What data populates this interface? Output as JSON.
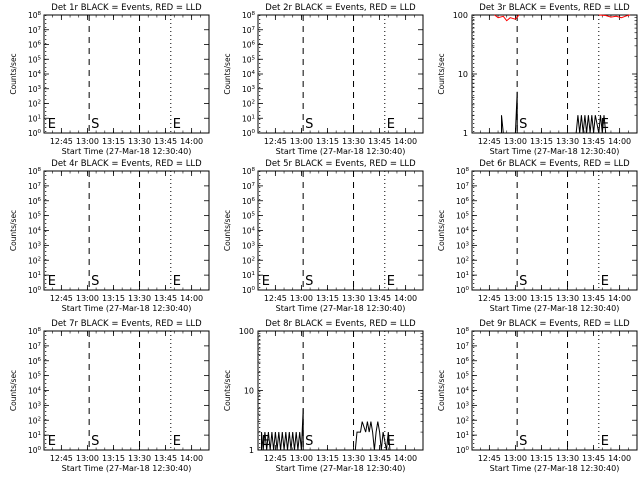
{
  "page": {
    "background": "#ffffff"
  },
  "chart_data": [
    {
      "type": "line",
      "title": "Det 1r BLACK = Events, RED = LLD",
      "xlabel": "Start Time (27-Mar-18 12:30:40)",
      "ylabel": "Counts/sec",
      "xlim": [
        "12:35",
        "14:10"
      ],
      "x_tick_labels": [
        "12:45",
        "13:00",
        "13:15",
        "13:30",
        "13:45",
        "14:00"
      ],
      "y_scale": "log",
      "ylim": [
        1,
        100000000.0
      ],
      "y_tick_labels": [
        "10^0",
        "10^1",
        "10^2",
        "10^3",
        "10^4",
        "10^5",
        "10^6",
        "10^7",
        "10^8"
      ],
      "markers": [
        {
          "label": "E",
          "time": "12:36",
          "style": "dotted"
        },
        {
          "label": "S",
          "time": "13:01",
          "style": "dashed"
        },
        {
          "label": "",
          "time": "13:30",
          "style": "dashed"
        },
        {
          "label": "E",
          "time": "13:48",
          "style": "dotted"
        }
      ],
      "series": [],
      "colors": {
        "events": "#000000",
        "lld": "#ff0000"
      }
    },
    {
      "type": "line",
      "title": "Det 2r BLACK = Events, RED = LLD",
      "xlabel": "Start Time (27-Mar-18 12:30:40)",
      "ylabel": "Counts/sec",
      "xlim": [
        "12:35",
        "14:10"
      ],
      "x_tick_labels": [
        "12:45",
        "13:00",
        "13:15",
        "13:30",
        "13:45",
        "14:00"
      ],
      "y_scale": "log",
      "ylim": [
        1,
        100000000.0
      ],
      "y_tick_labels": [
        "10^0",
        "10^1",
        "10^2",
        "10^3",
        "10^4",
        "10^5",
        "10^6",
        "10^7",
        "10^8"
      ],
      "markers": [
        {
          "label": "",
          "time": "12:36",
          "style": "dotted"
        },
        {
          "label": "S",
          "time": "13:01",
          "style": "dashed"
        },
        {
          "label": "",
          "time": "13:30",
          "style": "dashed"
        },
        {
          "label": "E",
          "time": "13:48",
          "style": "dotted"
        }
      ],
      "series": [],
      "colors": {
        "events": "#000000",
        "lld": "#ff0000"
      }
    },
    {
      "type": "line",
      "title": "Det 3r BLACK = Events, RED = LLD",
      "xlabel": "Start Time (27-Mar-18 12:30:40)",
      "ylabel": "Counts/sec",
      "xlim": [
        "12:35",
        "14:10"
      ],
      "x_tick_labels": [
        "12:45",
        "13:00",
        "13:15",
        "13:30",
        "13:45",
        "14:00"
      ],
      "y_scale": "log",
      "ylim": [
        1,
        100
      ],
      "y_tick_labels": [
        "1",
        "10",
        "100"
      ],
      "markers": [
        {
          "label": "",
          "time": "12:36",
          "style": "dotted"
        },
        {
          "label": "S",
          "time": "13:01",
          "style": "dashed"
        },
        {
          "label": "",
          "time": "13:30",
          "style": "dashed"
        },
        {
          "label": "E",
          "time": "13:48",
          "style": "dotted"
        }
      ],
      "series": [
        {
          "color": "#000000",
          "points": [
            [
              "12:52",
              1
            ],
            [
              "12:52",
              2
            ],
            [
              "12:53",
              1
            ],
            [
              "13:00",
              1
            ],
            [
              "13:01",
              5
            ],
            [
              "13:01",
              1
            ],
            [
              "13:35",
              1
            ],
            [
              "13:36",
              2
            ],
            [
              "13:37",
              1
            ],
            [
              "13:38",
              2
            ],
            [
              "13:39",
              1
            ],
            [
              "13:40",
              2
            ],
            [
              "13:41",
              1
            ],
            [
              "13:42",
              2
            ],
            [
              "13:43",
              1
            ],
            [
              "13:44",
              2
            ],
            [
              "13:45",
              1
            ],
            [
              "13:46",
              2
            ],
            [
              "13:48",
              1
            ],
            [
              "13:49",
              2
            ],
            [
              "13:50",
              1
            ],
            [
              "13:51",
              2
            ],
            [
              "13:52",
              1
            ]
          ]
        },
        {
          "color": "#ff0000",
          "points": [
            [
              "12:48",
              100
            ],
            [
              "12:50",
              90
            ],
            [
              "12:53",
              95
            ],
            [
              "12:55",
              80
            ],
            [
              "12:57",
              90
            ],
            [
              "13:00",
              85
            ],
            [
              "13:02",
              100
            ]
          ]
        },
        {
          "color": "#ff0000",
          "points": [
            [
              "13:48",
              100
            ],
            [
              "13:52",
              98
            ],
            [
              "13:55",
              92
            ],
            [
              "13:58",
              95
            ],
            [
              "14:01",
              90
            ],
            [
              "14:04",
              97
            ],
            [
              "14:06",
              100
            ]
          ]
        }
      ],
      "colors": {
        "events": "#000000",
        "lld": "#ff0000"
      }
    },
    {
      "type": "line",
      "title": "Det 4r BLACK = Events, RED = LLD",
      "xlabel": "Start Time (27-Mar-18 12:30:40)",
      "ylabel": "Counts/sec",
      "xlim": [
        "12:35",
        "14:10"
      ],
      "x_tick_labels": [
        "12:45",
        "13:00",
        "13:15",
        "13:30",
        "13:45",
        "14:00"
      ],
      "y_scale": "log",
      "ylim": [
        1,
        100000000.0
      ],
      "y_tick_labels": [
        "10^0",
        "10^1",
        "10^2",
        "10^3",
        "10^4",
        "10^5",
        "10^6",
        "10^7",
        "10^8"
      ],
      "markers": [
        {
          "label": "E",
          "time": "12:36",
          "style": "dotted"
        },
        {
          "label": "S",
          "time": "13:01",
          "style": "dashed"
        },
        {
          "label": "",
          "time": "13:30",
          "style": "dashed"
        },
        {
          "label": "E",
          "time": "13:48",
          "style": "dotted"
        }
      ],
      "series": [],
      "colors": {
        "events": "#000000",
        "lld": "#ff0000"
      }
    },
    {
      "type": "line",
      "title": "Det 5r BLACK = Events, RED = LLD",
      "xlabel": "Start Time (27-Mar-18 12:30:40)",
      "ylabel": "Counts/sec",
      "xlim": [
        "12:35",
        "14:10"
      ],
      "x_tick_labels": [
        "12:45",
        "13:00",
        "13:15",
        "13:30",
        "13:45",
        "14:00"
      ],
      "y_scale": "log",
      "ylim": [
        1,
        100000000.0
      ],
      "y_tick_labels": [
        "10^0",
        "10^1",
        "10^2",
        "10^3",
        "10^4",
        "10^5",
        "10^6",
        "10^7",
        "10^8"
      ],
      "markers": [
        {
          "label": "E",
          "time": "12:36",
          "style": "dotted"
        },
        {
          "label": "S",
          "time": "13:01",
          "style": "dashed"
        },
        {
          "label": "",
          "time": "13:30",
          "style": "dashed"
        },
        {
          "label": "E",
          "time": "13:48",
          "style": "dotted"
        }
      ],
      "series": [],
      "colors": {
        "events": "#000000",
        "lld": "#ff0000"
      }
    },
    {
      "type": "line",
      "title": "Det 6r BLACK = Events, RED = LLD",
      "xlabel": "Start Time (27-Mar-18 12:30:40)",
      "ylabel": "Counts/sec",
      "xlim": [
        "12:35",
        "14:10"
      ],
      "x_tick_labels": [
        "12:45",
        "13:00",
        "13:15",
        "13:30",
        "13:45",
        "14:00"
      ],
      "y_scale": "log",
      "ylim": [
        1,
        100000000.0
      ],
      "y_tick_labels": [
        "10^0",
        "10^1",
        "10^2",
        "10^3",
        "10^4",
        "10^5",
        "10^6",
        "10^7",
        "10^8"
      ],
      "markers": [
        {
          "label": "",
          "time": "12:36",
          "style": "dotted"
        },
        {
          "label": "S",
          "time": "13:01",
          "style": "dashed"
        },
        {
          "label": "",
          "time": "13:30",
          "style": "dashed"
        },
        {
          "label": "E",
          "time": "13:48",
          "style": "dotted"
        }
      ],
      "series": [],
      "colors": {
        "events": "#000000",
        "lld": "#ff0000"
      }
    },
    {
      "type": "line",
      "title": "Det 7r BLACK = Events, RED = LLD",
      "xlabel": "Start Time (27-Mar-18 12:30:40)",
      "ylabel": "Counts/sec",
      "xlim": [
        "12:35",
        "14:10"
      ],
      "x_tick_labels": [
        "12:45",
        "13:00",
        "13:15",
        "13:30",
        "13:45",
        "14:00"
      ],
      "y_scale": "log",
      "ylim": [
        1,
        100000000.0
      ],
      "y_tick_labels": [
        "10^0",
        "10^1",
        "10^2",
        "10^3",
        "10^4",
        "10^5",
        "10^6",
        "10^7",
        "10^8"
      ],
      "markers": [
        {
          "label": "E",
          "time": "12:36",
          "style": "dotted"
        },
        {
          "label": "S",
          "time": "13:01",
          "style": "dashed"
        },
        {
          "label": "",
          "time": "13:30",
          "style": "dashed"
        },
        {
          "label": "E",
          "time": "13:48",
          "style": "dotted"
        }
      ],
      "series": [],
      "colors": {
        "events": "#000000",
        "lld": "#ff0000"
      }
    },
    {
      "type": "line",
      "title": "Det 8r BLACK = Events, RED = LLD",
      "xlabel": "Start Time (27-Mar-18 12:30:40)",
      "ylabel": "Counts/sec",
      "xlim": [
        "12:35",
        "14:10"
      ],
      "x_tick_labels": [
        "12:45",
        "13:00",
        "13:15",
        "13:30",
        "13:45",
        "14:00"
      ],
      "y_scale": "log",
      "ylim": [
        1,
        100
      ],
      "y_tick_labels": [
        "1",
        "10",
        "100"
      ],
      "markers": [
        {
          "label": "E",
          "time": "12:36",
          "style": "dotted"
        },
        {
          "label": "S",
          "time": "13:01",
          "style": "dashed"
        },
        {
          "label": "",
          "time": "13:30",
          "style": "dashed"
        },
        {
          "label": "E",
          "time": "13:48",
          "style": "dotted"
        }
      ],
      "series": [
        {
          "color": "#000000",
          "points": [
            [
              "12:37",
              1
            ],
            [
              "12:37",
              2
            ],
            [
              "12:38",
              1
            ],
            [
              "12:39",
              2
            ],
            [
              "12:40",
              1
            ],
            [
              "12:41",
              2
            ],
            [
              "12:42",
              1
            ],
            [
              "12:43",
              2
            ],
            [
              "12:44",
              1
            ],
            [
              "12:45",
              2
            ],
            [
              "12:46",
              1
            ],
            [
              "12:47",
              2
            ],
            [
              "12:48",
              1
            ],
            [
              "12:49",
              2
            ],
            [
              "12:50",
              1
            ],
            [
              "12:51",
              2
            ],
            [
              "12:52",
              1
            ],
            [
              "12:53",
              2
            ],
            [
              "12:54",
              1
            ],
            [
              "12:55",
              2
            ],
            [
              "12:56",
              1
            ],
            [
              "12:57",
              2
            ],
            [
              "12:58",
              1
            ],
            [
              "12:59",
              2
            ],
            [
              "13:00",
              1
            ],
            [
              "13:01",
              5
            ],
            [
              "13:01",
              1
            ],
            [
              "13:31",
              1
            ],
            [
              "13:32",
              2
            ],
            [
              "13:34",
              2
            ],
            [
              "13:35",
              3
            ],
            [
              "13:37",
              2
            ],
            [
              "13:38",
              3
            ],
            [
              "13:39",
              2
            ],
            [
              "13:40",
              3
            ],
            [
              "13:41",
              2
            ],
            [
              "13:42",
              1
            ],
            [
              "13:43",
              2
            ],
            [
              "13:44",
              3
            ],
            [
              "13:45",
              2
            ],
            [
              "13:46",
              1
            ],
            [
              "13:47",
              2
            ],
            [
              "13:49",
              1
            ],
            [
              "13:50",
              2
            ],
            [
              "13:51",
              1
            ]
          ]
        }
      ],
      "colors": {
        "events": "#000000",
        "lld": "#ff0000"
      }
    },
    {
      "type": "line",
      "title": "Det 9r BLACK = Events, RED = LLD",
      "xlabel": "Start Time (27-Mar-18 12:30:40)",
      "ylabel": "Counts/sec",
      "xlim": [
        "12:35",
        "14:10"
      ],
      "x_tick_labels": [
        "12:45",
        "13:00",
        "13:15",
        "13:30",
        "13:45",
        "14:00"
      ],
      "y_scale": "log",
      "ylim": [
        1,
        100000000.0
      ],
      "y_tick_labels": [
        "10^0",
        "10^1",
        "10^2",
        "10^3",
        "10^4",
        "10^5",
        "10^6",
        "10^7",
        "10^8"
      ],
      "markers": [
        {
          "label": "",
          "time": "12:36",
          "style": "dotted"
        },
        {
          "label": "S",
          "time": "13:01",
          "style": "dashed"
        },
        {
          "label": "",
          "time": "13:30",
          "style": "dashed"
        },
        {
          "label": "E",
          "time": "13:48",
          "style": "dotted"
        }
      ],
      "series": [],
      "colors": {
        "events": "#000000",
        "lld": "#ff0000"
      }
    }
  ]
}
